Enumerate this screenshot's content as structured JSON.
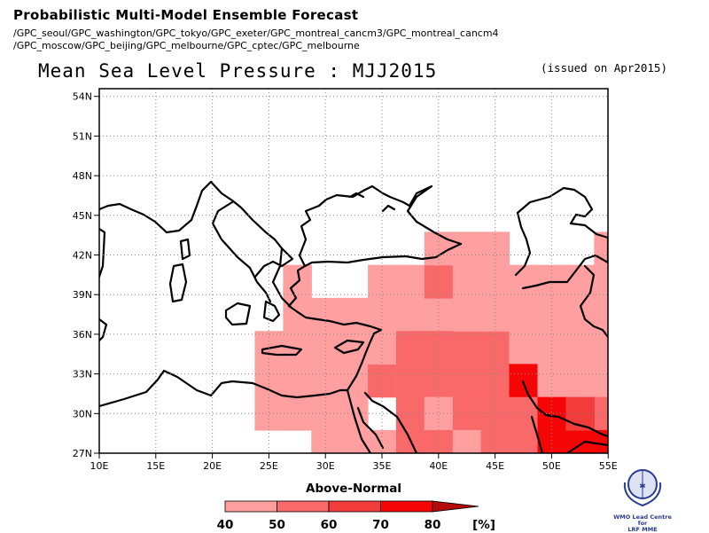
{
  "header": {
    "title": "Probabilistic Multi-Model Ensemble Forecast",
    "models_line1": "/GPC_seoul/GPC_washington/GPC_tokyo/GPC_exeter/GPC_montreal_cancm3/GPC_montreal_cancm4",
    "models_line2": "/GPC_moscow/GPC_beijing/GPC_melbourne/GPC_cptec/GPC_melbourne"
  },
  "map": {
    "title": "Mean Sea Level Pressure : MJJ2015",
    "issued": "(issued on Apr2015)",
    "lat_labels": [
      "54N",
      "51N",
      "48N",
      "45N",
      "42N",
      "39N",
      "36N",
      "33N",
      "30N",
      "27N"
    ],
    "lon_labels": [
      "10E",
      "15E",
      "20E",
      "25E",
      "30E",
      "35E",
      "40E",
      "45E",
      "50E",
      "55E"
    ],
    "grid": "dotted",
    "category_colors": {
      "40-50": "#ff9f9f",
      "50-60": "#fa6969",
      "60-70": "#f23b3b",
      "70-80": "#f50505"
    }
  },
  "legend": {
    "title": "Above-Normal",
    "ticks": [
      "40",
      "50",
      "60",
      "70",
      "80"
    ],
    "unit": "[%]",
    "colors": [
      "#ff9f9f",
      "#fa6969",
      "#f23b3b",
      "#f50505",
      "#b50a0a"
    ]
  },
  "logo": {
    "text_line1": "WMO Lead Centre for",
    "text_line2": "LRF MME"
  }
}
